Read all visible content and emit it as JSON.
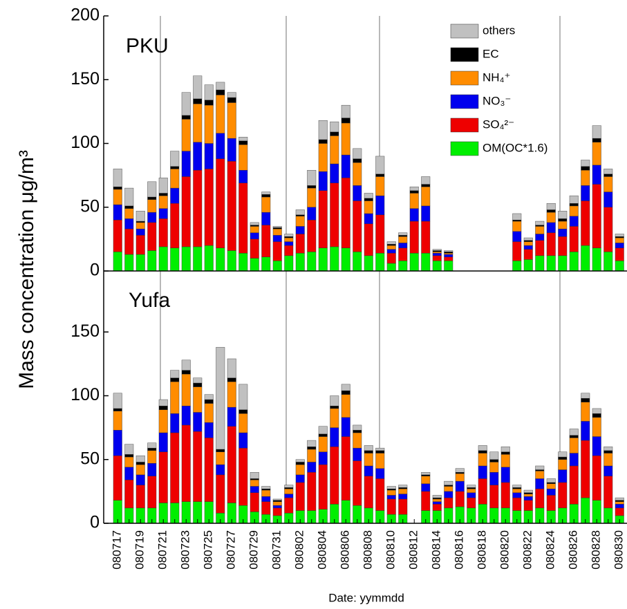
{
  "chart_data": [
    {
      "type": "stacked_bar",
      "title": "PKU",
      "ylim": [
        0,
        200
      ],
      "yticks": [
        0,
        50,
        100,
        150,
        200
      ],
      "ylabel": "Mass concentration μg/m³",
      "legend": "top-right",
      "series": [
        {
          "name": "OM(OC*1.6)",
          "color": "#00ee00",
          "values": [
            15,
            13,
            13,
            16,
            19,
            18,
            19,
            19,
            20,
            18,
            16,
            14,
            10,
            11,
            8,
            12,
            14,
            15,
            18,
            19,
            18,
            15,
            12,
            14,
            6,
            8,
            14,
            14,
            8,
            8,
            null,
            null,
            null,
            null,
            null,
            8,
            9,
            12,
            12,
            12,
            15,
            20,
            18,
            15,
            8
          ]
        },
        {
          "name": "SO₄²⁻",
          "color": "#ee0000",
          "values": [
            25,
            20,
            15,
            22,
            22,
            35,
            55,
            60,
            60,
            70,
            70,
            55,
            15,
            25,
            15,
            8,
            15,
            25,
            45,
            50,
            55,
            40,
            25,
            30,
            8,
            10,
            25,
            25,
            4,
            3,
            null,
            null,
            null,
            null,
            null,
            15,
            8,
            12,
            18,
            15,
            20,
            35,
            50,
            35,
            10
          ]
        },
        {
          "name": "NO₃⁻",
          "color": "#0000ee",
          "values": [
            12,
            8,
            5,
            8,
            8,
            12,
            20,
            22,
            20,
            20,
            18,
            10,
            5,
            10,
            5,
            3,
            6,
            10,
            15,
            15,
            18,
            12,
            8,
            15,
            3,
            4,
            10,
            12,
            2,
            2,
            null,
            null,
            null,
            null,
            null,
            8,
            3,
            5,
            8,
            6,
            8,
            12,
            15,
            12,
            4
          ]
        },
        {
          "name": "NH₄⁺",
          "color": "#ff8c00",
          "values": [
            12,
            8,
            5,
            10,
            10,
            15,
            25,
            30,
            30,
            30,
            28,
            20,
            5,
            12,
            5,
            3,
            8,
            15,
            22,
            22,
            25,
            18,
            10,
            15,
            3,
            5,
            12,
            15,
            1,
            1,
            null,
            null,
            null,
            null,
            null,
            8,
            3,
            6,
            8,
            6,
            8,
            12,
            18,
            12,
            4
          ]
        },
        {
          "name": "EC",
          "color": "#000000",
          "values": [
            2,
            2,
            1,
            2,
            2,
            2,
            3,
            4,
            4,
            4,
            4,
            3,
            1,
            2,
            1,
            1,
            1,
            2,
            3,
            3,
            4,
            3,
            2,
            2,
            1,
            1,
            2,
            2,
            1,
            1,
            null,
            null,
            null,
            null,
            null,
            1,
            1,
            1,
            2,
            2,
            2,
            3,
            3,
            2,
            1
          ]
        },
        {
          "name": "others",
          "color": "#c0c0c0",
          "values": [
            14,
            14,
            8,
            12,
            12,
            12,
            18,
            18,
            12,
            6,
            4,
            3,
            2,
            2,
            1,
            2,
            4,
            12,
            15,
            8,
            10,
            8,
            4,
            14,
            2,
            2,
            3,
            6,
            1,
            1,
            null,
            null,
            null,
            null,
            null,
            5,
            2,
            3,
            5,
            6,
            6,
            5,
            10,
            4,
            2
          ]
        }
      ]
    },
    {
      "type": "stacked_bar",
      "title": "Yufa",
      "ylim": [
        0,
        200
      ],
      "yticks": [
        0,
        50,
        100,
        150
      ],
      "xlabel": "Date: yymmdd",
      "categories": [
        "080717",
        null,
        "080719",
        null,
        "080721",
        null,
        "080723",
        null,
        "080725",
        null,
        "080727",
        null,
        "080729",
        null,
        "080731",
        null,
        "080802",
        null,
        "080804",
        null,
        "080806",
        null,
        "080808",
        null,
        "080810",
        null,
        "080812",
        null,
        "080814",
        null,
        "080816",
        null,
        "080818",
        null,
        "080820",
        null,
        "080822",
        null,
        "080824",
        null,
        "080826",
        null,
        "080828",
        null,
        "080830"
      ],
      "series": [
        {
          "name": "OM(OC*1.6)",
          "color": "#00ee00",
          "values": [
            18,
            12,
            12,
            12,
            16,
            16,
            17,
            17,
            17,
            8,
            16,
            14,
            9,
            7,
            6,
            8,
            10,
            10,
            11,
            15,
            18,
            14,
            12,
            10,
            7,
            7,
            null,
            10,
            10,
            12,
            13,
            12,
            15,
            12,
            12,
            10,
            10,
            12,
            10,
            12,
            15,
            20,
            18,
            12,
            6
          ]
        },
        {
          "name": "SO₄²⁻",
          "color": "#ee0000",
          "values": [
            35,
            22,
            18,
            25,
            40,
            55,
            60,
            55,
            50,
            30,
            60,
            45,
            15,
            10,
            6,
            12,
            22,
            30,
            35,
            45,
            50,
            35,
            25,
            25,
            12,
            12,
            null,
            15,
            5,
            8,
            12,
            8,
            20,
            18,
            20,
            10,
            8,
            15,
            12,
            20,
            30,
            45,
            35,
            25,
            6
          ]
        },
        {
          "name": "NO₃⁻",
          "color": "#0000ee",
          "values": [
            20,
            10,
            8,
            10,
            15,
            15,
            15,
            15,
            12,
            8,
            15,
            12,
            5,
            4,
            2,
            3,
            6,
            8,
            10,
            15,
            15,
            10,
            8,
            8,
            3,
            4,
            null,
            6,
            2,
            5,
            8,
            4,
            10,
            10,
            12,
            4,
            3,
            8,
            5,
            10,
            10,
            15,
            15,
            8,
            3
          ]
        },
        {
          "name": "NH₄⁺",
          "color": "#ff8c00",
          "values": [
            15,
            8,
            8,
            10,
            18,
            25,
            25,
            20,
            15,
            10,
            20,
            15,
            5,
            5,
            3,
            4,
            8,
            10,
            12,
            15,
            18,
            12,
            10,
            12,
            4,
            4,
            null,
            6,
            2,
            4,
            6,
            3,
            10,
            8,
            10,
            3,
            2,
            6,
            4,
            8,
            12,
            15,
            15,
            10,
            2
          ]
        },
        {
          "name": "EC",
          "color": "#000000",
          "values": [
            2,
            2,
            2,
            2,
            3,
            3,
            3,
            3,
            3,
            2,
            3,
            3,
            1,
            1,
            1,
            1,
            2,
            2,
            2,
            2,
            3,
            2,
            2,
            2,
            1,
            1,
            null,
            1,
            1,
            1,
            1,
            1,
            2,
            2,
            2,
            1,
            1,
            1,
            1,
            2,
            2,
            3,
            3,
            2,
            1
          ]
        },
        {
          "name": "others",
          "color": "#c0c0c0",
          "values": [
            12,
            8,
            5,
            4,
            5,
            6,
            8,
            4,
            4,
            80,
            15,
            20,
            5,
            2,
            1,
            2,
            2,
            5,
            6,
            8,
            5,
            4,
            4,
            2,
            2,
            2,
            null,
            2,
            2,
            3,
            3,
            2,
            4,
            6,
            4,
            2,
            2,
            3,
            3,
            4,
            5,
            4,
            4,
            3,
            2
          ]
        }
      ]
    }
  ]
}
